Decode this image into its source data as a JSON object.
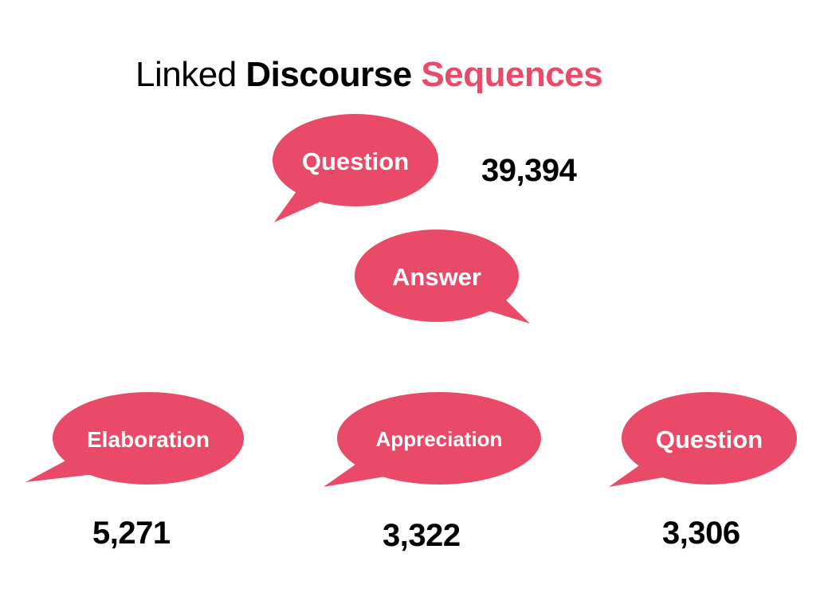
{
  "title": {
    "part1": "Linked",
    "part2": "Discourse",
    "part3": "Sequences"
  },
  "colors": {
    "bubble": "#e84a68",
    "accent": "#e84a68",
    "text": "#000000"
  },
  "nodes": {
    "top_question": {
      "label": "Question",
      "count": "39,394"
    },
    "answer": {
      "label": "Answer"
    },
    "elaboration": {
      "label": "Elaboration",
      "count": "5,271"
    },
    "appreciation": {
      "label": "Appreciation",
      "count": "3,322"
    },
    "followup_question": {
      "label": "Question",
      "count": "3,306"
    }
  }
}
